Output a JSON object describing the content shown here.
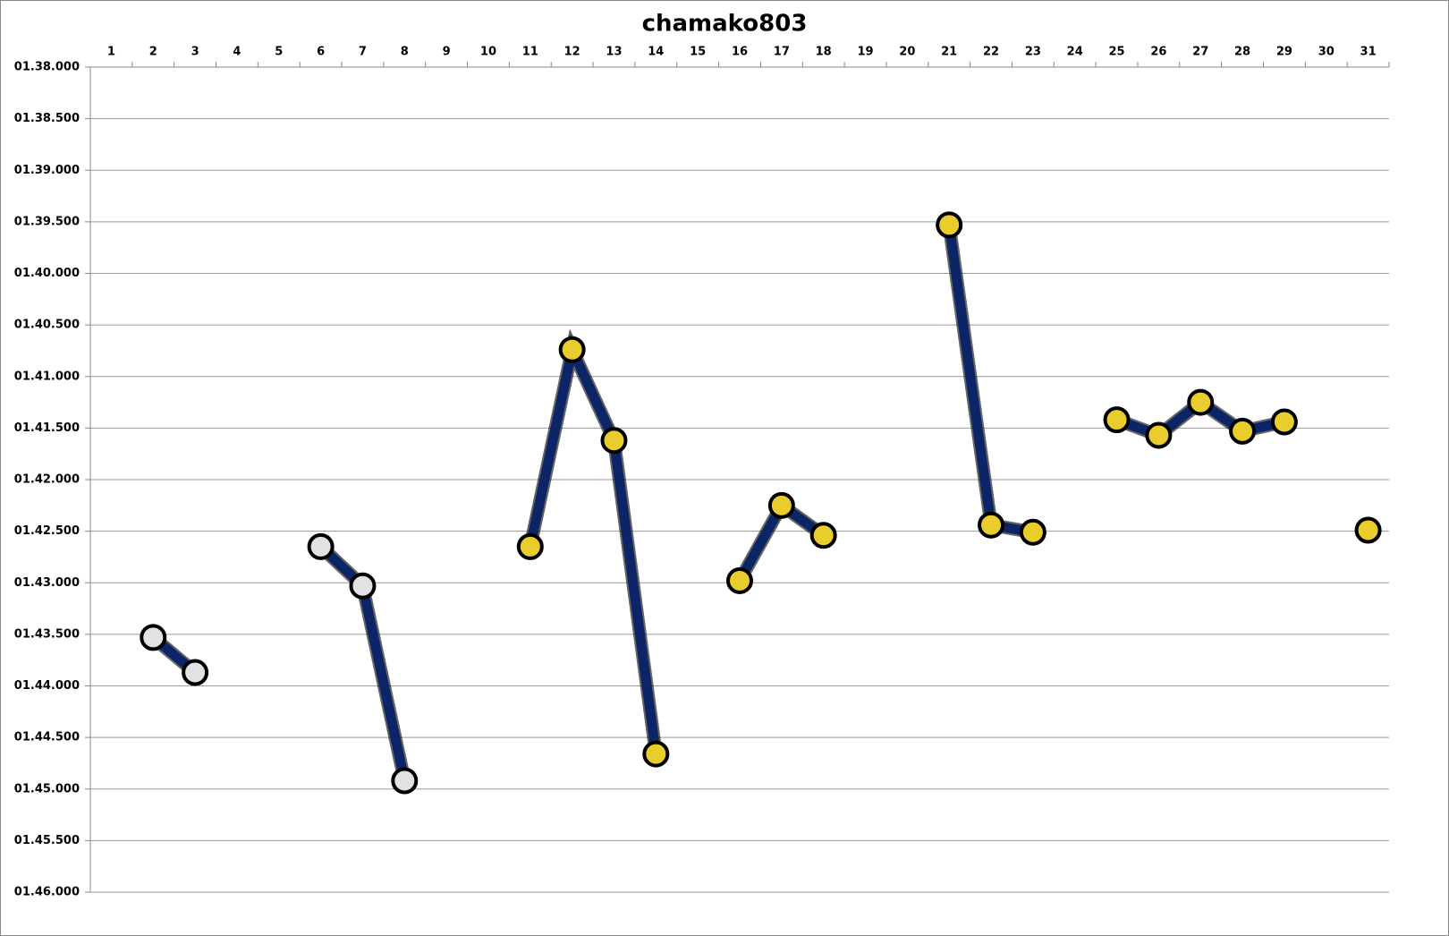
{
  "chart_data": {
    "type": "line",
    "title": "chamako803",
    "categories": [
      "1",
      "2",
      "3",
      "4",
      "5",
      "6",
      "7",
      "8",
      "9",
      "10",
      "11",
      "12",
      "13",
      "14",
      "15",
      "16",
      "17",
      "18",
      "19",
      "20",
      "21",
      "22",
      "23",
      "24",
      "25",
      "26",
      "27",
      "28",
      "29",
      "30",
      "31"
    ],
    "series": [
      {
        "color": "#0b2566",
        "values": [
          null,
          103.53,
          103.87,
          null,
          null,
          102.65,
          103.03,
          104.92,
          null,
          null,
          102.65,
          100.74,
          101.62,
          104.66,
          null,
          102.98,
          102.25,
          102.54,
          null,
          null,
          99.53,
          102.44,
          102.51,
          null,
          101.42,
          101.57,
          101.25,
          101.53,
          101.44,
          null,
          102.49
        ],
        "marker_colors": [
          null,
          "#e2e2e2",
          "#e2e2e2",
          null,
          null,
          "#e2e2e2",
          "#e2e2e2",
          "#e2e2e2",
          null,
          null,
          "#e8cd2c",
          "#e8cd2c",
          "#e8cd2c",
          "#e8cd2c",
          null,
          "#e8cd2c",
          "#e8cd2c",
          "#e8cd2c",
          null,
          null,
          "#e8cd2c",
          "#e8cd2c",
          "#e8cd2c",
          null,
          "#e8cd2c",
          "#e8cd2c",
          "#e8cd2c",
          "#e8cd2c",
          "#e8cd2c",
          null,
          "#e8cd2c"
        ]
      }
    ],
    "ylim": [
      98,
      106
    ],
    "y_reversed": true,
    "yticks": [
      {
        "value": 98,
        "label": "01.38.000"
      },
      {
        "value": 98.5,
        "label": "01.38.500"
      },
      {
        "value": 99,
        "label": "01.39.000"
      },
      {
        "value": 99.5,
        "label": "01.39.500"
      },
      {
        "value": 100,
        "label": "01.40.000"
      },
      {
        "value": 100.5,
        "label": "01.40.500"
      },
      {
        "value": 101,
        "label": "01.41.000"
      },
      {
        "value": 101.5,
        "label": "01.41.500"
      },
      {
        "value": 102,
        "label": "01.42.000"
      },
      {
        "value": 102.5,
        "label": "01.42.500"
      },
      {
        "value": 103,
        "label": "01.43.000"
      },
      {
        "value": 103.5,
        "label": "01.43.500"
      },
      {
        "value": 104,
        "label": "01.44.000"
      },
      {
        "value": 104.5,
        "label": "01.44.500"
      },
      {
        "value": 105,
        "label": "01.45.000"
      },
      {
        "value": 105.5,
        "label": "01.45.500"
      },
      {
        "value": 106,
        "label": "01.46.000"
      }
    ],
    "grid": true
  }
}
